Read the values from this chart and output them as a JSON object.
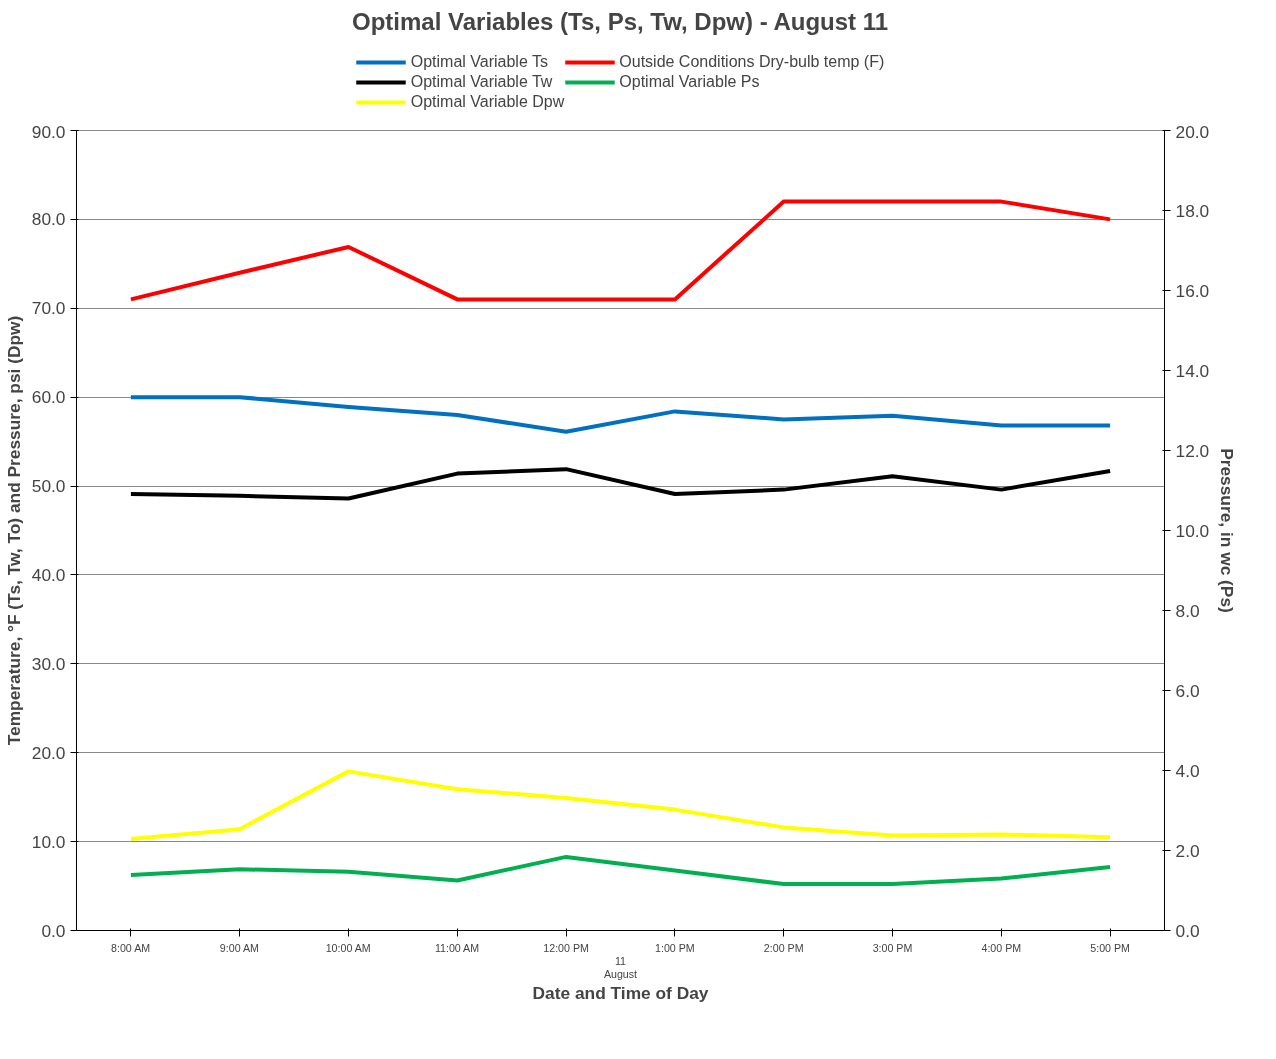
{
  "chart_data": {
    "type": "line",
    "title": "Optimal Variables (Ts, Ps, Tw, Dpw) - August 11",
    "xlabel": "Date and Time of Day",
    "ylabel": "Temperature, °F (Ts, Tw, To) and Pressure, psi (Dpw)",
    "y2label": "Pressure, in wc (Ps)",
    "categories": [
      "8:00 AM",
      "9:00 AM",
      "10:00 AM",
      "11:00 AM",
      "12:00 PM",
      "1:00 PM",
      "2:00 PM",
      "3:00 PM",
      "4:00 PM",
      "5:00 PM"
    ],
    "annotations": [
      "11",
      "August"
    ],
    "series": [
      {
        "name": "Optimal Variable Ts",
        "color": "#0070c0",
        "values": [
          60.0,
          60.0,
          58.9,
          58.0,
          56.1,
          58.4,
          57.5,
          57.9,
          56.8,
          56.8
        ]
      },
      {
        "name": "Optimal Variable Tw",
        "color": "#000000",
        "values": [
          49.1,
          48.9,
          48.6,
          51.4,
          51.9,
          49.1,
          49.6,
          51.1,
          49.6,
          51.7
        ]
      },
      {
        "name": "Optimal Variable Dpw",
        "color": "#ffff00",
        "values": [
          10.3,
          11.4,
          17.9,
          15.9,
          14.9,
          13.6,
          11.6,
          10.7,
          10.8,
          10.5
        ]
      },
      {
        "name": "Outside Conditions Dry-bulb temp (F)",
        "color": "#ff0000",
        "values": [
          71.0,
          74.0,
          76.9,
          71.0,
          71.0,
          71.0,
          82.0,
          82.0,
          82.0,
          80.0
        ]
      },
      {
        "name": "Optimal Variable Ps",
        "color": "#00b050",
        "axis": "y2",
        "values": [
          1.39,
          1.53,
          1.47,
          1.25,
          1.84,
          1.5,
          1.16,
          1.16,
          1.3,
          1.59
        ]
      }
    ],
    "ylim": [
      0,
      90
    ],
    "yticks": [
      {
        "value": 0,
        "label": "0.0"
      },
      {
        "value": 10,
        "label": "10.0"
      },
      {
        "value": 20,
        "label": "20.0"
      },
      {
        "value": 30,
        "label": "30.0"
      },
      {
        "value": 40,
        "label": "40.0"
      },
      {
        "value": 50,
        "label": "50.0"
      },
      {
        "value": 60,
        "label": "60.0"
      },
      {
        "value": 70,
        "label": "70.0"
      },
      {
        "value": 80,
        "label": "80.0"
      },
      {
        "value": 90,
        "label": "90.0"
      }
    ],
    "y2lim": [
      0,
      20
    ],
    "y2ticks": [
      {
        "value": 0,
        "label": "0.0"
      },
      {
        "value": 2,
        "label": "2.0"
      },
      {
        "value": 4,
        "label": "4.0"
      },
      {
        "value": 6,
        "label": "6.0"
      },
      {
        "value": 8,
        "label": "8.0"
      },
      {
        "value": 10,
        "label": "10.0"
      },
      {
        "value": 12,
        "label": "12.0"
      },
      {
        "value": 14,
        "label": "14.0"
      },
      {
        "value": 16,
        "label": "16.0"
      },
      {
        "value": 18,
        "label": "18.0"
      },
      {
        "value": 20,
        "label": "20.0"
      }
    ],
    "grid": "y",
    "legend": "top",
    "marker": "none",
    "line_style": "solid"
  }
}
